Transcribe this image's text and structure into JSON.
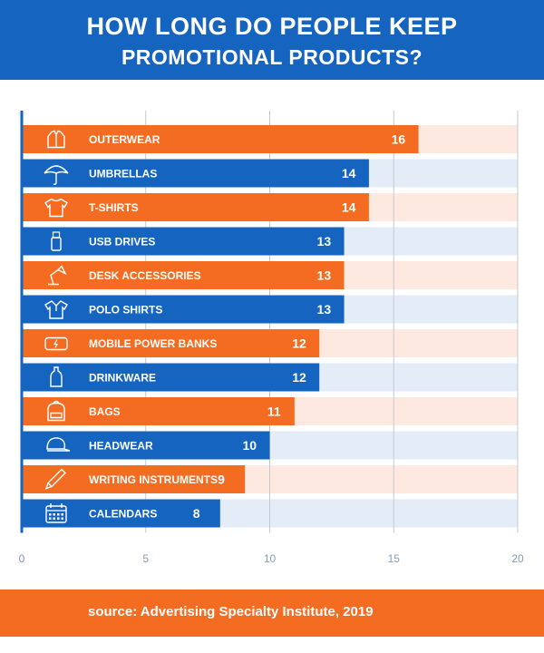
{
  "header": {
    "title_line1": "HOW LONG DO PEOPLE KEEP",
    "title_line2": "PROMOTIONAL PRODUCTS?"
  },
  "footer": {
    "source": "source: Advertising Specialty Institute, 2019"
  },
  "colors": {
    "orange": "#f36c21",
    "blue": "#1565c0",
    "orange_track": "#fde9df",
    "blue_track": "#e3ecf7"
  },
  "chart_data": {
    "type": "bar",
    "orientation": "horizontal",
    "title": "HOW LONG DO PEOPLE KEEP PROMOTIONAL PRODUCTS?",
    "xlim": [
      0,
      20
    ],
    "xticks": [
      0,
      5,
      10,
      15,
      20
    ],
    "categories": [
      {
        "label": "OUTERWEAR",
        "value": 16,
        "color": "orange",
        "icon": "jacket-icon"
      },
      {
        "label": "UMBRELLAS",
        "value": 14,
        "color": "blue",
        "icon": "umbrella-icon"
      },
      {
        "label": "T-SHIRTS",
        "value": 14,
        "color": "orange",
        "icon": "tshirt-icon"
      },
      {
        "label": "USB DRIVES",
        "value": 13,
        "color": "blue",
        "icon": "usb-drive-icon"
      },
      {
        "label": "DESK ACCESSORIES",
        "value": 13,
        "color": "orange",
        "icon": "desk-lamp-icon"
      },
      {
        "label": "POLO SHIRTS",
        "value": 13,
        "color": "blue",
        "icon": "polo-shirt-icon"
      },
      {
        "label": "MOBILE POWER BANKS",
        "value": 12,
        "color": "orange",
        "icon": "power-bank-icon"
      },
      {
        "label": "DRINKWARE",
        "value": 12,
        "color": "blue",
        "icon": "bottle-icon"
      },
      {
        "label": "BAGS",
        "value": 11,
        "color": "orange",
        "icon": "backpack-icon"
      },
      {
        "label": "HEADWEAR",
        "value": 10,
        "color": "blue",
        "icon": "cap-icon"
      },
      {
        "label": "WRITING INSTRUMENTS",
        "value": 9,
        "color": "orange",
        "icon": "pencil-icon"
      },
      {
        "label": "CALENDARS",
        "value": 8,
        "color": "blue",
        "icon": "calendar-icon"
      }
    ]
  }
}
